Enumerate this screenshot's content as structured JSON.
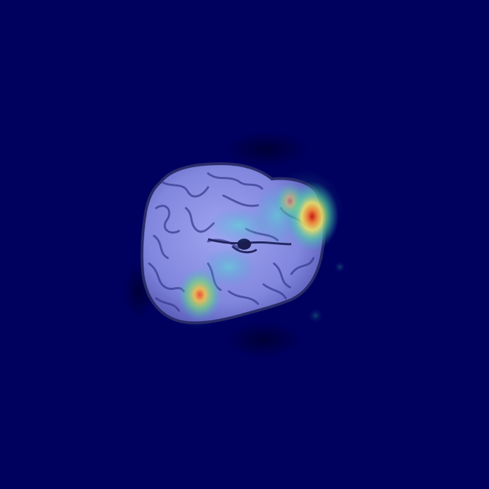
{
  "scene": {
    "subject": "brain-mri-axial-slice",
    "overlay": "saliency-heatmap",
    "colors": {
      "background": "#00005f",
      "brain_base": "#8a8fe8",
      "brain_dark": "#3d3f8c",
      "heat_low": "#2fc2c2",
      "heat_mid": "#e8e85a",
      "heat_high": "#e04020"
    }
  }
}
